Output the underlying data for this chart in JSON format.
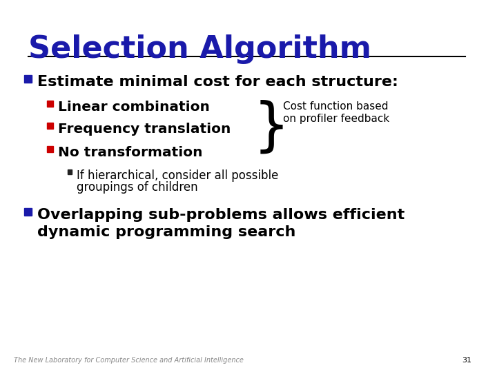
{
  "title": "Selection Algorithm",
  "title_color": "#1a1aaa",
  "title_fontsize": 32,
  "bg_color": "#ffffff",
  "line_color": "#000000",
  "bullet1_color": "#1a1aaa",
  "bullet2_color": "#cc0000",
  "bullet3_color": "#cc0000",
  "bullet4_color": "#1a1aaa",
  "body_color": "#000000",
  "footer_color": "#888888",
  "slide_number_color": "#000000",
  "title_text": "Selection Algorithm",
  "line1": "Estimate minimal cost for each structure:",
  "line2": "Linear combination",
  "line3": "Frequency translation",
  "line4": "No transformation",
  "line5a": "If hierarchical, consider all possible",
  "line5b": "groupings of children",
  "line6a": "Overlapping sub-problems allows efficient",
  "line6b": "dynamic programming search",
  "annotation_line1": "Cost function based",
  "annotation_line2": "on profiler feedback",
  "footer": "The New Laboratory for Computer Science and Artificial Intelligence",
  "slide_number": "31"
}
